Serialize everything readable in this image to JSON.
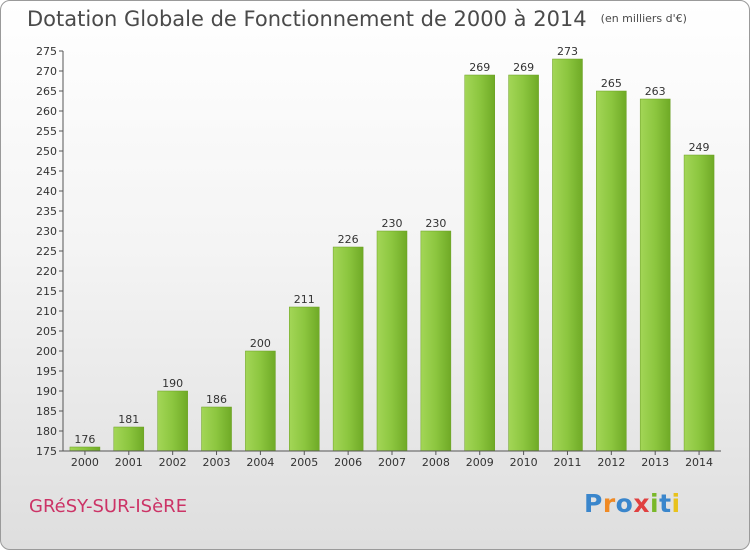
{
  "chart_data": {
    "type": "bar",
    "title": "Dotation Globale de Fonctionnement de 2000 à 2014",
    "unit_note": "(en milliers d'€)",
    "categories": [
      "2000",
      "2001",
      "2002",
      "2003",
      "2004",
      "2005",
      "2006",
      "2007",
      "2008",
      "2009",
      "2010",
      "2011",
      "2012",
      "2013",
      "2014"
    ],
    "values": [
      176,
      181,
      190,
      186,
      200,
      211,
      226,
      230,
      230,
      269,
      269,
      273,
      265,
      263,
      249
    ],
    "ylim": [
      175,
      275
    ],
    "ytick_step": 5,
    "xlabel": "",
    "ylabel": "",
    "grid": false,
    "bar_color": "#86c23a"
  },
  "footer": {
    "commune": "GRéSY-SUR-ISèRE",
    "logo_letters": [
      "P",
      "r",
      "o",
      "x",
      "i",
      "t",
      "i"
    ]
  }
}
